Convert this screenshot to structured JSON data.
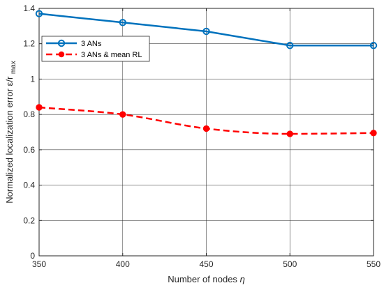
{
  "chart_data": {
    "type": "line",
    "title": "",
    "xlabel": "Number of nodes",
    "xlabel_symbol": "η",
    "ylabel": "Normalized localization error ε/r",
    "ylabel_sub": "max",
    "xlim": [
      350,
      550
    ],
    "ylim": [
      0,
      1.4
    ],
    "xticks": [
      350,
      400,
      450,
      500,
      550
    ],
    "yticks": [
      0,
      0.2,
      0.4,
      0.6,
      0.8,
      1,
      1.2,
      1.4
    ],
    "ytick_labels": [
      "0",
      "0.2",
      "0.4",
      "0.6",
      "0.8",
      "1",
      "1.2",
      "1.4"
    ],
    "grid": true,
    "legend_position": "top-left",
    "x": [
      350,
      400,
      450,
      500,
      550
    ],
    "series": [
      {
        "name": "3 ANs",
        "values": [
          1.37,
          1.32,
          1.27,
          1.19,
          1.19
        ],
        "color": "#0072BD",
        "line_style": "solid",
        "marker": "open-circle"
      },
      {
        "name": "3 ANs & mean RL",
        "values": [
          0.84,
          0.8,
          0.72,
          0.69,
          0.695
        ],
        "color": "#FF0000",
        "line_style": "dashed",
        "marker": "filled-circle"
      }
    ]
  }
}
